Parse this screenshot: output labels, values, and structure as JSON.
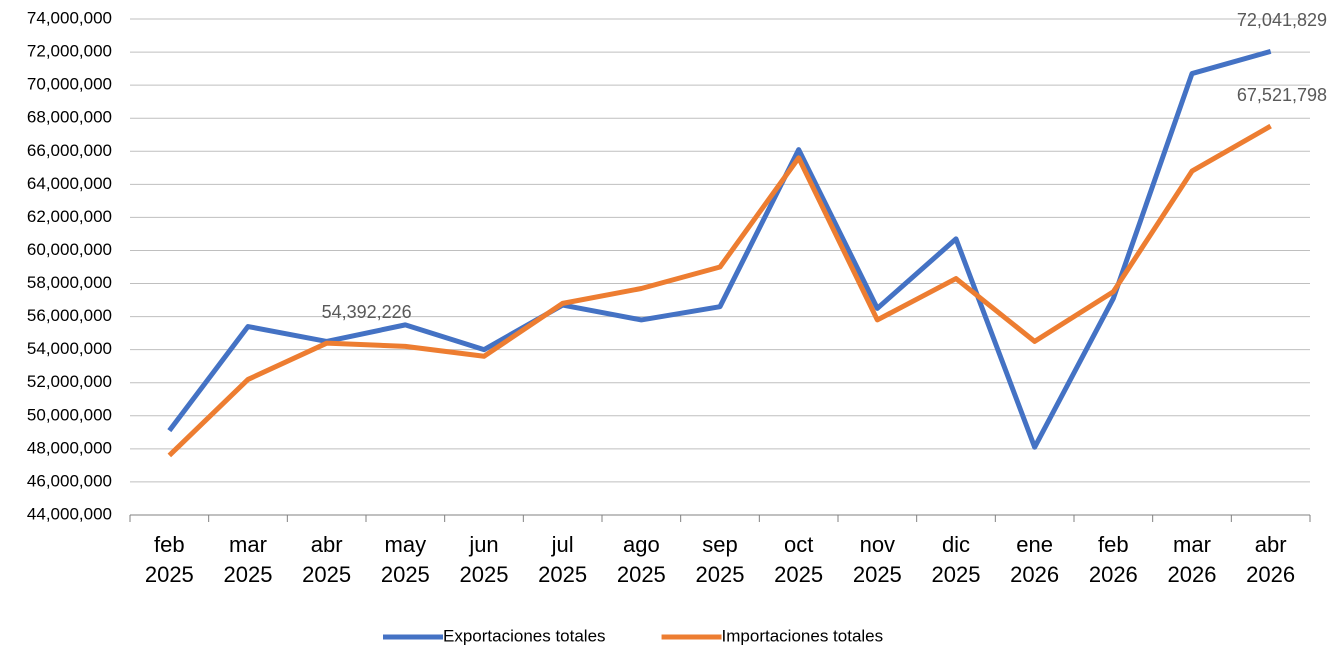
{
  "chart_data": {
    "type": "line",
    "categories": [
      "feb 2025",
      "mar 2025",
      "abr 2025",
      "may 2025",
      "jun 2025",
      "jul 2025",
      "ago 2025",
      "sep 2025",
      "oct 2025",
      "nov 2025",
      "dic 2025",
      "ene 2026",
      "feb 2026",
      "mar 2026",
      "abr 2026"
    ],
    "series": [
      {
        "name": "Exportaciones totales",
        "color": "#4472c4",
        "values": [
          49100000,
          55400000,
          54500000,
          55500000,
          54000000,
          56700000,
          55800000,
          56600000,
          66100000,
          56500000,
          60700000,
          48100000,
          57100000,
          70700000,
          72041829
        ],
        "value_labels": [
          null,
          null,
          null,
          null,
          null,
          null,
          null,
          null,
          null,
          null,
          null,
          null,
          null,
          null,
          "72,041,829"
        ]
      },
      {
        "name": "Importaciones totales",
        "color": "#ed7d31",
        "values": [
          47600000,
          52200000,
          54392226,
          54200000,
          53600000,
          56800000,
          57700000,
          59000000,
          65600000,
          55800000,
          58300000,
          54500000,
          57500000,
          64800000,
          67521798
        ],
        "value_labels": [
          null,
          null,
          "54,392,226",
          null,
          null,
          null,
          null,
          null,
          null,
          null,
          null,
          null,
          null,
          null,
          "67,521,798"
        ]
      }
    ],
    "ylim": [
      44000000,
      74000000
    ],
    "yticks": [
      {
        "value": 44000000,
        "label": "44,000,000"
      },
      {
        "value": 46000000,
        "label": "46,000,000"
      },
      {
        "value": 48000000,
        "label": "48,000,000"
      },
      {
        "value": 50000000,
        "label": "50,000,000"
      },
      {
        "value": 52000000,
        "label": "52,000,000"
      },
      {
        "value": 54000000,
        "label": "54,000,000"
      },
      {
        "value": 56000000,
        "label": "56,000,000"
      },
      {
        "value": 58000000,
        "label": "58,000,000"
      },
      {
        "value": 60000000,
        "label": "60,000,000"
      },
      {
        "value": 62000000,
        "label": "62,000,000"
      },
      {
        "value": 64000000,
        "label": "64,000,000"
      },
      {
        "value": 66000000,
        "label": "66,000,000"
      },
      {
        "value": 68000000,
        "label": "68,000,000"
      },
      {
        "value": 70000000,
        "label": "70,000,000"
      },
      {
        "value": 72000000,
        "label": "72,000,000"
      },
      {
        "value": 74000000,
        "label": "74,000,000"
      }
    ],
    "grid": true,
    "legend": "bottom"
  }
}
